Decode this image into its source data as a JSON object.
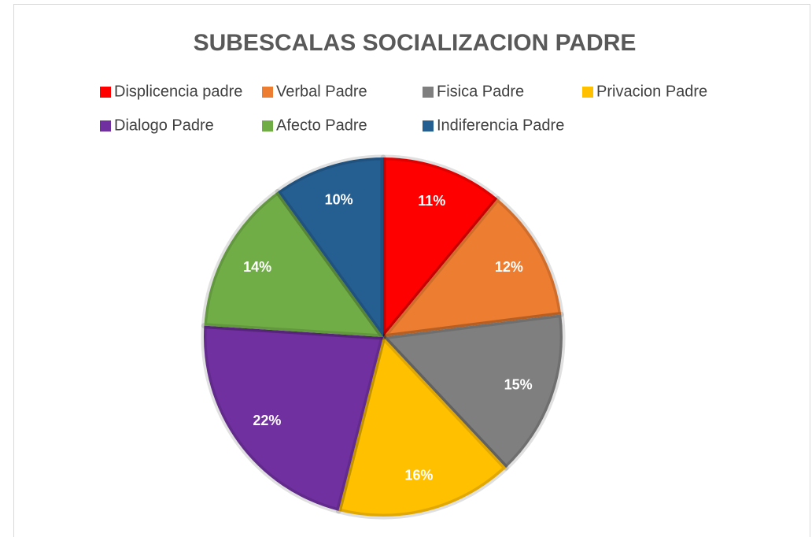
{
  "chart_data": {
    "type": "pie",
    "title": "SUBESCALAS SOCIALIZACION PADRE",
    "categories": [
      "Displicencia padre",
      "Verbal Padre",
      "Fisica Padre",
      "Privacion Padre",
      "Dialogo Padre",
      "Afecto Padre",
      "Indiferencia Padre"
    ],
    "values": [
      11,
      12,
      15,
      16,
      22,
      14,
      10
    ],
    "value_labels": [
      "11%",
      "12%",
      "15%",
      "16%",
      "22%",
      "14%",
      "10%"
    ],
    "colors": [
      "#ff0000",
      "#ed7d31",
      "#7f7f7f",
      "#ffc000",
      "#7030a0",
      "#70ad47",
      "#255e91"
    ],
    "legend": "top"
  }
}
